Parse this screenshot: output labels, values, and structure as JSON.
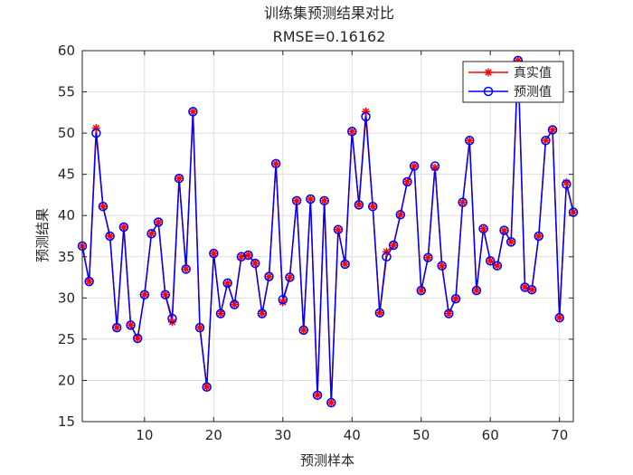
{
  "chart_data": {
    "type": "line",
    "title": "训练集预测结果对比",
    "subtitle": "RMSE=0.16162",
    "xlabel": "预测样本",
    "ylabel": "预测结果",
    "xlim": [
      1,
      72
    ],
    "ylim": [
      15,
      60
    ],
    "xticks": [
      10,
      20,
      30,
      40,
      50,
      60,
      70
    ],
    "yticks": [
      15,
      20,
      25,
      30,
      35,
      40,
      45,
      50,
      55,
      60
    ],
    "grid": true,
    "legend_position": "top-right",
    "x": [
      1,
      2,
      3,
      4,
      5,
      6,
      7,
      8,
      9,
      10,
      11,
      12,
      13,
      14,
      15,
      16,
      17,
      18,
      19,
      20,
      21,
      22,
      23,
      24,
      25,
      26,
      27,
      28,
      29,
      30,
      31,
      32,
      33,
      34,
      35,
      36,
      37,
      38,
      39,
      40,
      41,
      42,
      43,
      44,
      45,
      46,
      47,
      48,
      49,
      50,
      51,
      52,
      53,
      54,
      55,
      56,
      57,
      58,
      59,
      60,
      61,
      62,
      63,
      64,
      65,
      66,
      67,
      68,
      69,
      70,
      71,
      72
    ],
    "series": [
      {
        "name": "真实值",
        "color": "#ff0000",
        "marker": "asterisk",
        "values": [
          36.3,
          32.0,
          50.6,
          41.1,
          37.5,
          26.4,
          38.6,
          26.7,
          25.1,
          30.4,
          37.8,
          39.2,
          30.4,
          27.1,
          44.5,
          33.5,
          52.6,
          26.4,
          19.2,
          35.4,
          28.1,
          31.8,
          29.2,
          35.0,
          35.2,
          34.2,
          28.1,
          32.6,
          46.3,
          29.5,
          32.5,
          41.8,
          26.1,
          42.0,
          18.2,
          41.8,
          17.3,
          38.3,
          34.1,
          50.2,
          41.3,
          52.6,
          41.1,
          28.2,
          35.6,
          36.4,
          40.1,
          44.1,
          46.0,
          30.9,
          34.9,
          45.8,
          33.9,
          28.1,
          29.9,
          41.6,
          49.1,
          30.9,
          38.4,
          34.5,
          33.9,
          38.2,
          36.8,
          58.8,
          31.3,
          31.0,
          37.5,
          49.1,
          50.4,
          27.6,
          44.0,
          40.4
        ]
      },
      {
        "name": "预测值",
        "color": "#0000ff",
        "marker": "circle",
        "values": [
          36.3,
          32.0,
          50.0,
          41.1,
          37.5,
          26.4,
          38.6,
          26.7,
          25.1,
          30.4,
          37.8,
          39.2,
          30.4,
          27.5,
          44.5,
          33.5,
          52.6,
          26.4,
          19.2,
          35.4,
          28.1,
          31.8,
          29.2,
          35.0,
          35.2,
          34.2,
          28.1,
          32.6,
          46.3,
          29.8,
          32.5,
          41.8,
          26.1,
          42.0,
          18.2,
          41.8,
          17.3,
          38.3,
          34.1,
          50.2,
          41.3,
          52.0,
          41.1,
          28.2,
          35.0,
          36.4,
          40.1,
          44.1,
          46.0,
          30.9,
          34.9,
          46.0,
          33.9,
          28.1,
          29.9,
          41.6,
          49.1,
          30.9,
          38.4,
          34.5,
          33.9,
          38.2,
          36.8,
          58.8,
          31.3,
          31.0,
          37.5,
          49.1,
          50.4,
          27.6,
          43.8,
          40.4
        ]
      }
    ]
  }
}
